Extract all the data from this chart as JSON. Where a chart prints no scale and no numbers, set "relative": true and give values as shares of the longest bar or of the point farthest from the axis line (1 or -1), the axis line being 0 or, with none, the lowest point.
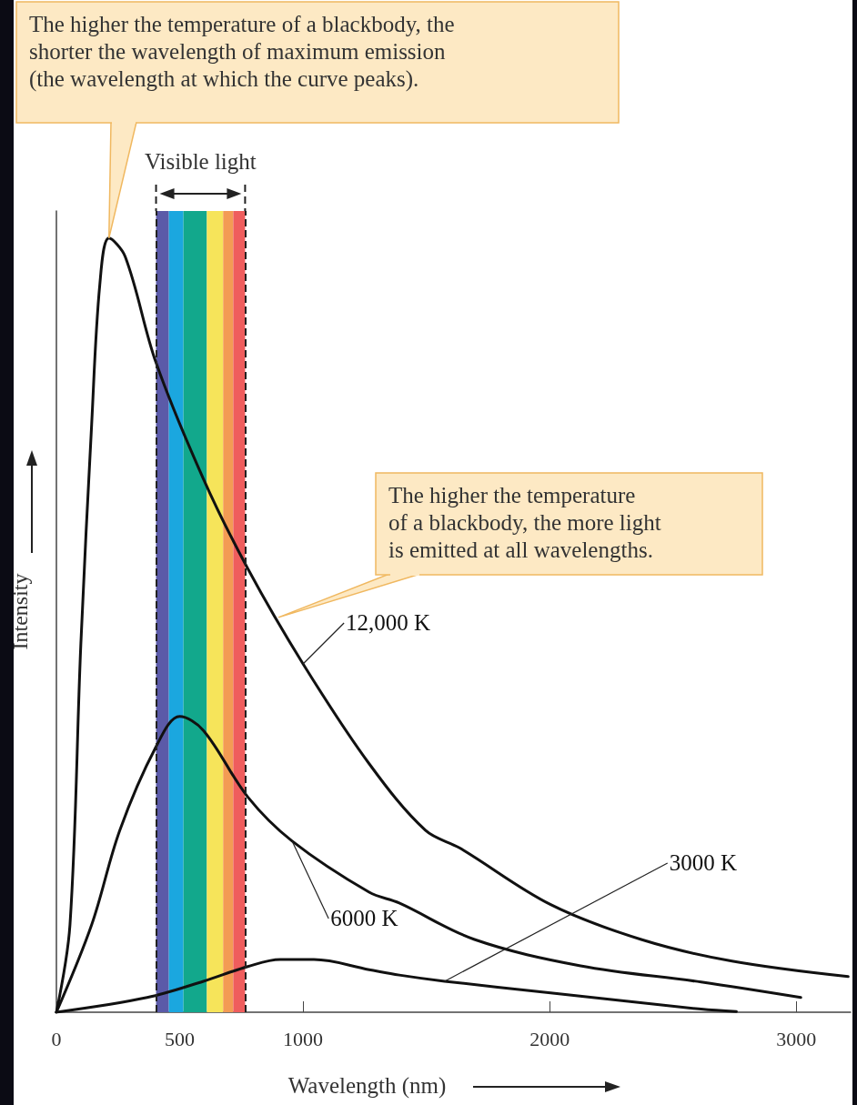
{
  "chart_data": {
    "type": "line",
    "relative": true,
    "xlabel": "Wavelength (nm)",
    "ylabel": "Intensity",
    "xlim": [
      0,
      3220
    ],
    "xticks": [
      0,
      500,
      1000,
      2000,
      3000
    ],
    "series": [
      {
        "name": "12,000 K",
        "color": "#111111",
        "x": [
          0,
          55,
          99,
          143,
          176,
          213,
          279,
          404,
          596,
          776,
          1000,
          1268,
          1496,
          1636,
          2004,
          2371,
          2739,
          3210
        ],
        "values": [
          0,
          0.113,
          0.475,
          0.76,
          0.94,
          1,
          0.976,
          0.839,
          0.689,
          0.573,
          0.45,
          0.321,
          0.235,
          0.212,
          0.139,
          0.094,
          0.066,
          0.046
        ]
      },
      {
        "name": "6000 K",
        "color": "#111111",
        "x": [
          0,
          143,
          257,
          404,
          500,
          596,
          776,
          956,
          1268,
          1390,
          1695,
          2125,
          2614,
          3018
        ],
        "values": [
          0,
          0.113,
          0.235,
          0.343,
          0.382,
          0.364,
          0.278,
          0.221,
          0.155,
          0.141,
          0.094,
          0.06,
          0.039,
          0.019
        ]
      },
      {
        "name": "3000 K",
        "color": "#111111",
        "x": [
          0,
          368,
          596,
          776,
          908,
          1044,
          1268,
          1390,
          1574,
          2004,
          2614,
          2757
        ],
        "values": [
          0,
          0.019,
          0.04,
          0.059,
          0.068,
          0.068,
          0.055,
          0.048,
          0.04,
          0.025,
          0.004,
          0.001
        ]
      }
    ],
    "bands": [
      {
        "axis": "x",
        "from": 404,
        "to": 456,
        "color": "#5b5aa8"
      },
      {
        "axis": "x",
        "from": 456,
        "to": 515,
        "color": "#1ba7df"
      },
      {
        "axis": "x",
        "from": 515,
        "to": 610,
        "color": "#12a88c"
      },
      {
        "axis": "x",
        "from": 610,
        "to": 676,
        "color": "#f6e45a"
      },
      {
        "axis": "x",
        "from": 676,
        "to": 717,
        "color": "#f39b54"
      },
      {
        "axis": "x",
        "from": 717,
        "to": 765,
        "color": "#ef5d5d"
      }
    ],
    "ref_lines": [
      {
        "axis": "x",
        "value": 404,
        "line_style": "dashed",
        "color": "#222222"
      },
      {
        "axis": "x",
        "value": 765,
        "line_style": "dashed",
        "color": "#222222"
      }
    ],
    "annotations": [
      "The higher the temperature of a blackbody, the\nshorter the wavelength of maximum emission\n(the wavelength at which the curve peaks).",
      {
        "text": "The higher the temperature\nof a blackbody, the more light\nis emitted at all wavelengths.",
        "x": 900,
        "y": 0.51
      },
      "Visible light"
    ]
  }
}
